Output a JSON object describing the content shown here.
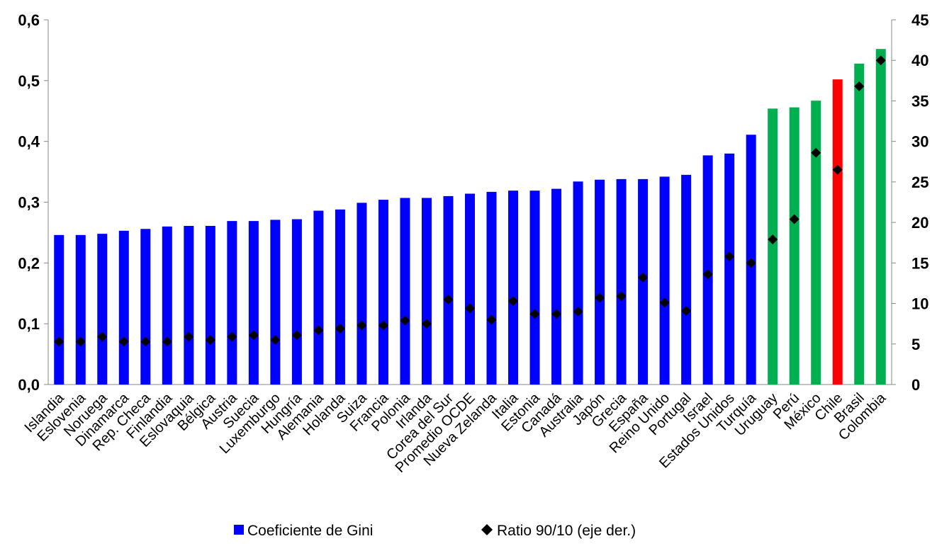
{
  "chart_data": {
    "type": "bar",
    "title": "",
    "xlabel": "",
    "ylabel": "",
    "ylim": [
      0,
      0.6
    ],
    "y2lim": [
      0,
      45
    ],
    "yticks": [
      "0,0",
      "0,1",
      "0,2",
      "0,3",
      "0,4",
      "0,5",
      "0,6"
    ],
    "y2ticks": [
      "0",
      "5",
      "10",
      "15",
      "20",
      "25",
      "30",
      "35",
      "40",
      "45"
    ],
    "grid": false,
    "legend_position": "bottom",
    "categories": [
      "Islandia",
      "Eslovenia",
      "Noruega",
      "Dinamarca",
      "Rep. Checa",
      "Finlandia",
      "Eslovaquia",
      "Bélgica",
      "Austria",
      "Suecia",
      "Luxemburgo",
      "Hungría",
      "Alemania",
      "Holanda",
      "Suiza",
      "Francia",
      "Polonia",
      "Irlanda",
      "Corea del Sur",
      "Promedio OCDE",
      "Nueva Zelanda",
      "Italia",
      "Estonia",
      "Canadá",
      "Australia",
      "Japón",
      "Grecia",
      "España",
      "Reino Unido",
      "Portugal",
      "Israel",
      "Estados Unidos",
      "Turquía",
      "Uruguay",
      "Perú",
      "México",
      "Chile",
      "Brasil",
      "Colombia"
    ],
    "series": [
      {
        "name": "Coeficiente de Gini",
        "type": "bar",
        "axis": "left",
        "values": [
          0.246,
          0.246,
          0.248,
          0.253,
          0.256,
          0.26,
          0.261,
          0.261,
          0.269,
          0.269,
          0.271,
          0.272,
          0.286,
          0.288,
          0.299,
          0.304,
          0.307,
          0.307,
          0.31,
          0.314,
          0.317,
          0.319,
          0.319,
          0.322,
          0.334,
          0.337,
          0.338,
          0.338,
          0.342,
          0.345,
          0.377,
          0.38,
          0.411,
          0.454,
          0.456,
          0.467,
          0.502,
          0.528,
          0.552
        ],
        "colors": [
          "#0000ff",
          "#0000ff",
          "#0000ff",
          "#0000ff",
          "#0000ff",
          "#0000ff",
          "#0000ff",
          "#0000ff",
          "#0000ff",
          "#0000ff",
          "#0000ff",
          "#0000ff",
          "#0000ff",
          "#0000ff",
          "#0000ff",
          "#0000ff",
          "#0000ff",
          "#0000ff",
          "#0000ff",
          "#0000ff",
          "#0000ff",
          "#0000ff",
          "#0000ff",
          "#0000ff",
          "#0000ff",
          "#0000ff",
          "#0000ff",
          "#0000ff",
          "#0000ff",
          "#0000ff",
          "#0000ff",
          "#0000ff",
          "#0000ff",
          "#00b050",
          "#00b050",
          "#00b050",
          "#ff0000",
          "#00b050",
          "#00b050"
        ]
      },
      {
        "name": "Ratio 90/10 (eje der.)",
        "type": "scatter",
        "axis": "right",
        "marker": "diamond",
        "values": [
          5.3,
          5.3,
          5.9,
          5.3,
          5.3,
          5.3,
          5.9,
          5.5,
          5.9,
          6.1,
          5.5,
          6.1,
          6.7,
          6.9,
          7.3,
          7.3,
          7.9,
          7.5,
          10.5,
          9.4,
          8.0,
          10.3,
          8.7,
          8.7,
          9.0,
          10.7,
          10.9,
          13.2,
          10.1,
          9.1,
          13.6,
          15.8,
          15.0,
          17.9,
          20.4,
          28.6,
          26.5,
          36.8,
          40.0
        ]
      }
    ]
  },
  "legend": {
    "items": [
      {
        "label": "Coeficiente de Gini",
        "color": "#0000ff"
      },
      {
        "label": "Ratio 90/10 (eje der.)",
        "color": "#000000"
      }
    ]
  }
}
